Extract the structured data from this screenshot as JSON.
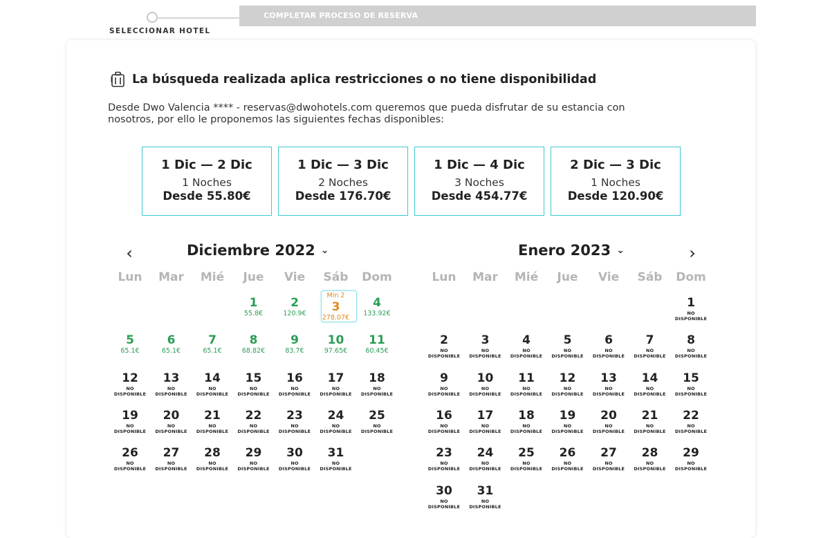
{
  "steps": {
    "step1_label": "SELECCIONAR HOTEL",
    "step2_label": "COMPLETAR PROCESO DE RESERVA"
  },
  "notice": {
    "icon": "luggage-icon",
    "title": "La búsqueda realizada aplica restricciones o no tiene disponibilidad",
    "text": "Desde Dwo Valencia **** - reservas@dwohotels.com queremos que pueda disfrutar de su estancia con nosotros, por ello le proponemos las siguientes fechas disponibles:"
  },
  "suggestions": [
    {
      "dates": "1 Dic — 2 Dic",
      "nights": "1 Noches",
      "price": "Desde 55.80€"
    },
    {
      "dates": "1 Dic — 3 Dic",
      "nights": "2 Noches",
      "price": "Desde 176.70€"
    },
    {
      "dates": "1 Dic — 4 Dic",
      "nights": "3 Noches",
      "price": "Desde 454.77€"
    },
    {
      "dates": "2 Dic — 3 Dic",
      "nights": "1 Noches",
      "price": "Desde 120.90€"
    }
  ],
  "calendar": {
    "prev_label": "‹",
    "next_label": "›",
    "weekdays": [
      "Lun",
      "Mar",
      "Mié",
      "Jue",
      "Vie",
      "Sáb",
      "Dom"
    ],
    "unavailable_line1": "NO",
    "unavailable_line2": "DISPONIBLE",
    "min_label": "Min 2",
    "accent_available": "#2a9d55",
    "accent_selected": "#e08a19",
    "months": [
      {
        "title": "Diciembre 2022",
        "start_weekday": 3,
        "days": 31,
        "available": {
          "1": "55.8€",
          "2": "120.9€",
          "3": "278.07€",
          "4": "133.92€",
          "5": "65.1€",
          "6": "65.1€",
          "7": "65.1€",
          "8": "68.82€",
          "9": "83.7€",
          "10": "97.65€",
          "11": "60.45€"
        },
        "selected_day": 3
      },
      {
        "title": "Enero 2023",
        "start_weekday": 6,
        "days": 31,
        "available": {},
        "selected_day": null
      }
    ]
  }
}
